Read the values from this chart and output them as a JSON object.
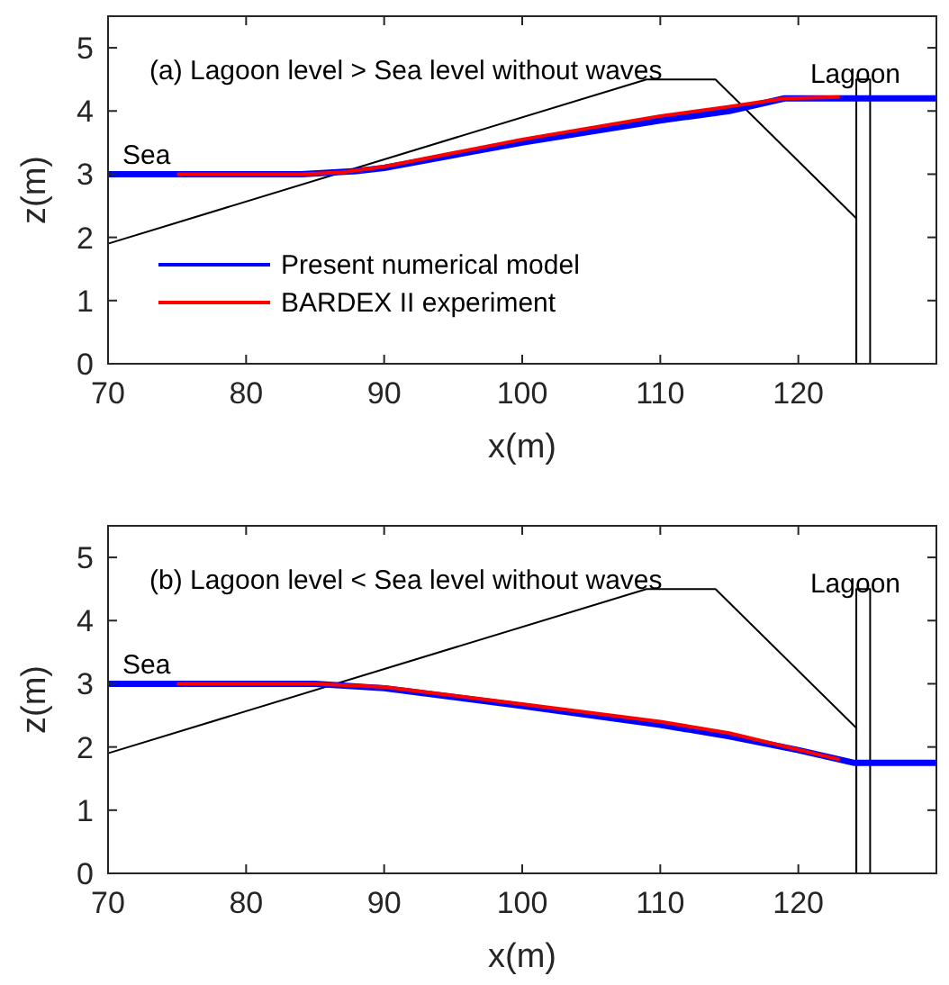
{
  "chart_data": [
    {
      "type": "line",
      "title": "(a) Lagoon level > Sea level without waves",
      "xlabel": "x(m)",
      "ylabel": "z(m)",
      "xlim": [
        70,
        130
      ],
      "ylim": [
        0,
        5.5
      ],
      "xticks": [
        70,
        80,
        90,
        100,
        110,
        120
      ],
      "yticks": [
        0,
        1,
        2,
        3,
        4,
        5
      ],
      "legend": "left",
      "grid": false,
      "annotations": [
        "Sea",
        "Lagoon"
      ],
      "series": [
        {
          "color": "#000000",
          "x": [
            70,
            109,
            114,
            124.2,
            124.2
          ],
          "values": [
            1.9,
            4.5,
            4.5,
            2.3,
            0
          ]
        },
        {
          "color": "#000000",
          "x": [
            124.2,
            124.2,
            125.2,
            125.2
          ],
          "values": [
            0,
            4.5,
            4.5,
            0
          ]
        },
        {
          "name": "Present numerical model",
          "color": "#0000ff",
          "x": [
            70,
            84,
            88,
            90,
            100,
            110,
            115,
            119,
            130
          ],
          "values": [
            3,
            3,
            3.05,
            3.1,
            3.5,
            3.85,
            4.0,
            4.2,
            4.2
          ]
        },
        {
          "name": "BARDEX II experiment",
          "color": "#ff0000",
          "x": [
            75,
            84,
            87,
            90,
            100,
            110,
            115,
            119,
            123
          ],
          "values": [
            3,
            3,
            3.03,
            3.12,
            3.55,
            3.92,
            4.07,
            4.2,
            4.22
          ]
        }
      ]
    },
    {
      "type": "line",
      "title": "(b) Lagoon level < Sea level without waves",
      "xlabel": "x(m)",
      "ylabel": "z(m)",
      "xlim": [
        70,
        130
      ],
      "ylim": [
        0,
        5.5
      ],
      "xticks": [
        70,
        80,
        90,
        100,
        110,
        120
      ],
      "yticks": [
        0,
        1,
        2,
        3,
        4,
        5
      ],
      "grid": false,
      "annotations": [
        "Sea",
        "Lagoon"
      ],
      "series": [
        {
          "color": "#000000",
          "x": [
            70,
            109,
            114,
            124.2,
            124.2
          ],
          "values": [
            1.9,
            4.5,
            4.5,
            2.3,
            0
          ]
        },
        {
          "color": "#000000",
          "x": [
            124.2,
            124.2,
            125.2,
            125.2
          ],
          "values": [
            0,
            4.5,
            4.5,
            0
          ]
        },
        {
          "color": "#0000ff",
          "x": [
            70,
            85,
            90,
            100,
            110,
            115,
            120,
            124,
            130
          ],
          "values": [
            3,
            3,
            2.93,
            2.65,
            2.35,
            2.17,
            1.95,
            1.75,
            1.75
          ]
        },
        {
          "color": "#ff0000",
          "x": [
            75,
            85,
            90,
            100,
            110,
            115,
            123
          ],
          "values": [
            3,
            3,
            2.95,
            2.68,
            2.4,
            2.22,
            1.8
          ]
        }
      ]
    }
  ]
}
